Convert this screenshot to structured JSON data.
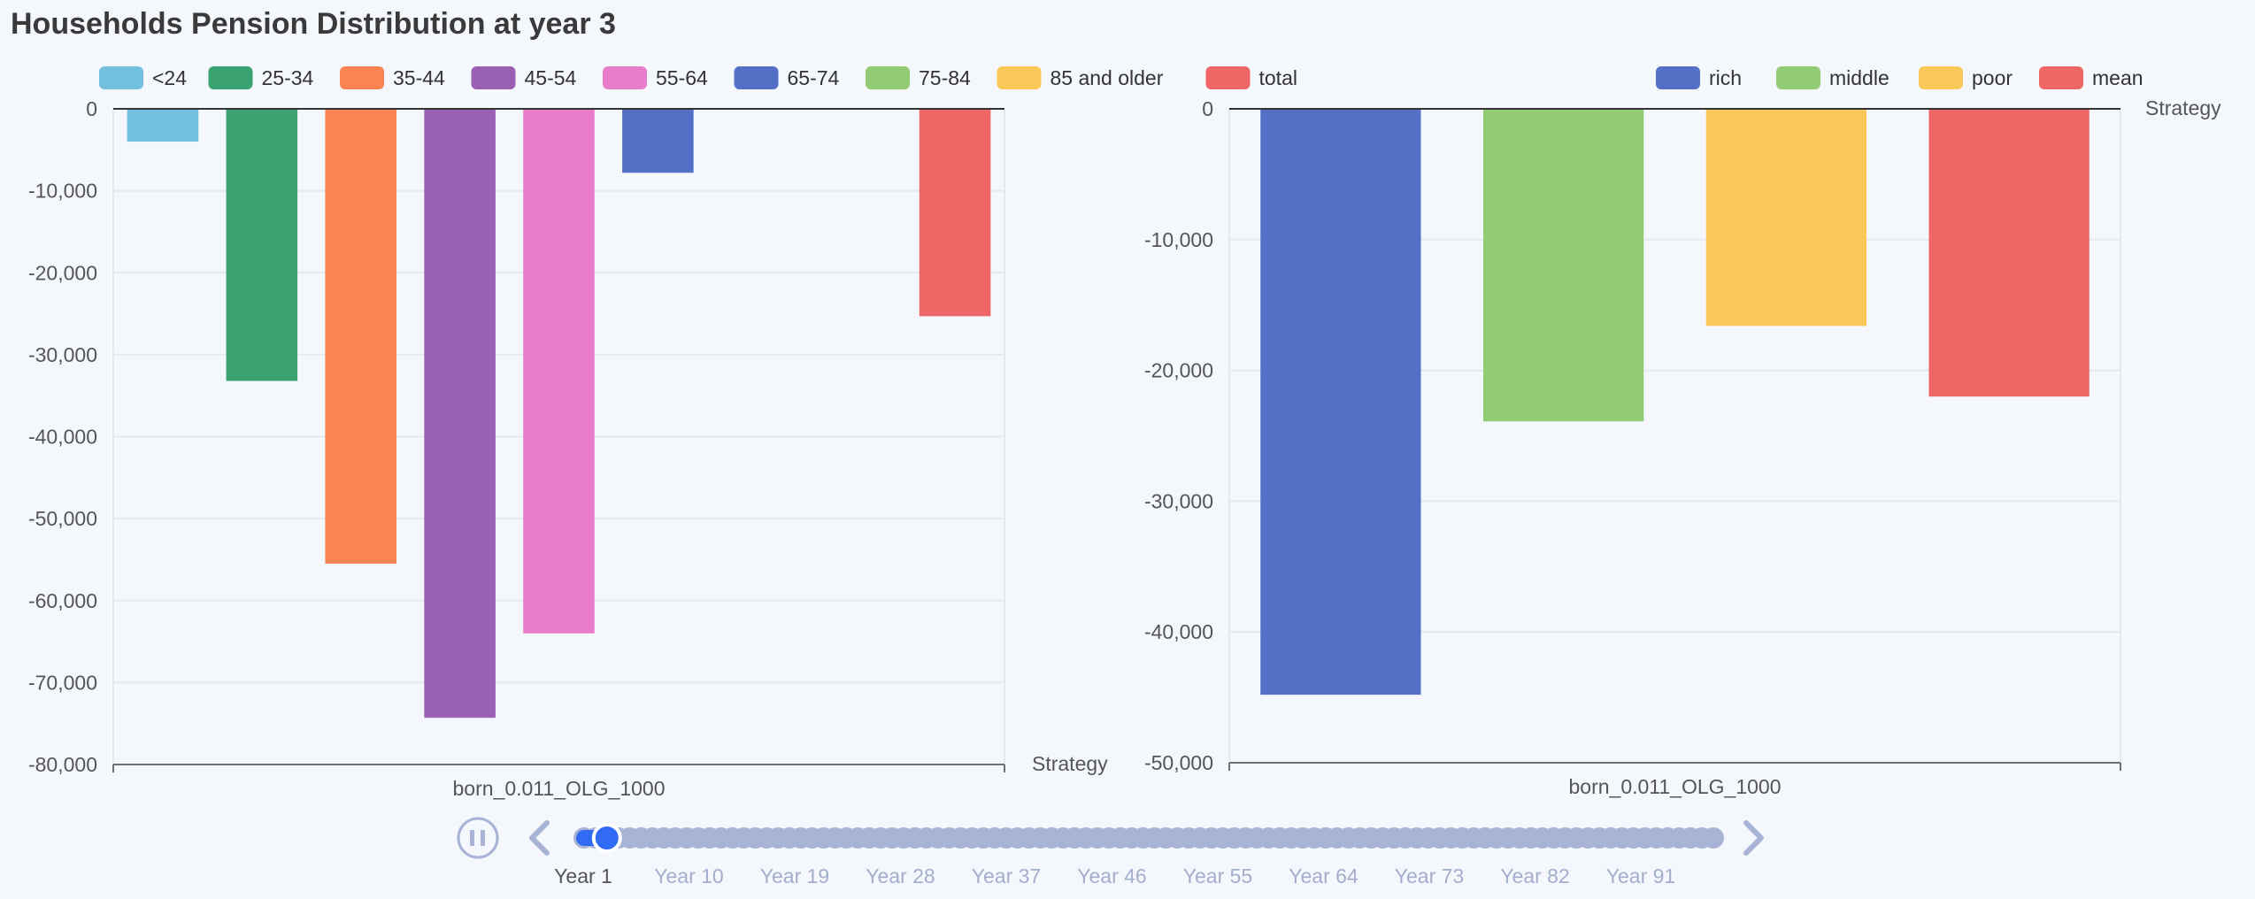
{
  "page": {
    "title": "Households Pension Distribution at year 3"
  },
  "colors": {
    "series": [
      "#73c0de",
      "#3ba272",
      "#fc8452",
      "#9a60b4",
      "#ea7ccc",
      "#5470c6",
      "#91cc75",
      "#fac858",
      "#ee6666"
    ],
    "timeline_track": "#a8b3d6",
    "timeline_active": "#316bf3",
    "gridline": "#e4e8f0",
    "axis": "#6e7079"
  },
  "chart_data": [
    {
      "type": "bar",
      "category": "born_0.011_OLG_1000",
      "axis_name": "Strategy",
      "series": [
        {
          "name": "<24",
          "value": -4000
        },
        {
          "name": "25-34",
          "value": -33200
        },
        {
          "name": "35-44",
          "value": -55500
        },
        {
          "name": "45-54",
          "value": -74300
        },
        {
          "name": "55-64",
          "value": -64000
        },
        {
          "name": "65-74",
          "value": -7800
        },
        {
          "name": "75-84",
          "value": 0
        },
        {
          "name": "85 and older",
          "value": 0
        },
        {
          "name": "total",
          "value": -25300
        }
      ],
      "y_ticks": [
        "0",
        "-10,000",
        "-20,000",
        "-30,000",
        "-40,000",
        "-50,000",
        "-60,000",
        "-70,000",
        "-80,000"
      ],
      "ylim": [
        -80000,
        0
      ],
      "grid": true,
      "legend_position": "top"
    },
    {
      "type": "bar",
      "category": "born_0.011_OLG_1000",
      "axis_name": "Strategy",
      "series": [
        {
          "name": "rich",
          "value": -44800
        },
        {
          "name": "middle",
          "value": -23900
        },
        {
          "name": "poor",
          "value": -16600
        },
        {
          "name": "mean",
          "value": -22000
        }
      ],
      "y_ticks": [
        "0",
        "-10,000",
        "-20,000",
        "-30,000",
        "-40,000",
        "-50,000"
      ],
      "ylim": [
        -50000,
        0
      ],
      "grid": true,
      "legend_position": "top-right"
    }
  ],
  "timeline": {
    "labels": [
      "Year 1",
      "Year 10",
      "Year 19",
      "Year 28",
      "Year 37",
      "Year 46",
      "Year 55",
      "Year 64",
      "Year 73",
      "Year 82",
      "Year 91"
    ],
    "current_year": 3,
    "total_years": 100,
    "playing": true,
    "play_button_icon": "pause-icon",
    "prev_icon": "chevron-left-icon",
    "next_icon": "chevron-right-icon"
  }
}
